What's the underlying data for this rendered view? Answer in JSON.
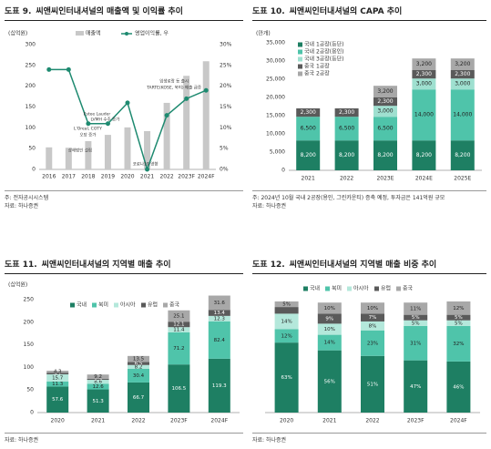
{
  "charts": {
    "f9": {
      "fig_label": "도표 9.",
      "title": "씨앤씨인터내셔널의 매출액 및 이익률 추이",
      "unit_left": "(십억원)",
      "notes": [
        "주: 전자공시시스템",
        "자료: 하나증권"
      ]
    },
    "f10": {
      "fig_label": "도표 10.",
      "title": "씨앤씨인터내셔널의 CAPA 추이",
      "unit_left": "(만개)",
      "notes": [
        "주: 2024년 10월 국내 2공장(용인, 그린카운티) 증축 예정, 투자금은 141억원 규모",
        "자료: 하나증권"
      ]
    },
    "f11": {
      "fig_label": "도표 11.",
      "title": "씨앤씨인터내셔널의 지역별 매출 추이",
      "unit_left": "(십억원)",
      "notes": [
        "자료: 하나증권"
      ]
    },
    "f12": {
      "fig_label": "도표 12.",
      "title": "씨앤씨인터내셔널의 지역별 매출 비중 추이",
      "notes": [
        "자료: 하나증권"
      ]
    }
  },
  "chart_data": [
    {
      "id": "f9",
      "type": "bar",
      "title": "씨앤씨인터내셔널의 매출액 및 이익률 추이",
      "categories": [
        "2016",
        "2017",
        "2018",
        "2019",
        "2020",
        "2021",
        "2022",
        "2023F",
        "2024F"
      ],
      "series": [
        {
          "name": "매출액",
          "type": "bar",
          "axis": "left",
          "color": "#c8c8c8",
          "values": [
            53,
            52,
            68,
            83,
            101,
            92,
            160,
            225,
            260
          ]
        },
        {
          "name": "영업이익률, 우",
          "type": "line",
          "axis": "right",
          "color": "#1e8a70",
          "values": [
            24,
            24,
            11,
            11,
            16,
            0,
            13,
            17,
            19
          ]
        }
      ],
      "ylim": [
        0,
        300
      ],
      "y_ticks": [
        0,
        50,
        100,
        150,
        200,
        250,
        300
      ],
      "y2lim": [
        0,
        30
      ],
      "y2_ticks": [
        "0%",
        "5%",
        "10%",
        "15%",
        "20%",
        "25%",
        "30%"
      ],
      "legend": "top-right",
      "annotations": [
        {
          "text": "상해법인 설립",
          "x": "2018"
        },
        {
          "text": "Estee Lauder",
          "x": "2019"
        },
        {
          "text": "LVMH 수주 증가",
          "x": "2019"
        },
        {
          "text": "L'Oreal, COTY",
          "x": "2019"
        },
        {
          "text": "오당 증가",
          "x": "2019"
        },
        {
          "text": "코로나19 영향",
          "x": "2021"
        },
        {
          "text": "입생로랑 등 출시",
          "x": "2022"
        },
        {
          "text": "TARTE(KOSE, 북미) 매출 급증",
          "x": "2022"
        }
      ]
    },
    {
      "id": "f10",
      "type": "bar",
      "stacked": true,
      "title": "씨앤씨인터내셔널의 CAPA 추이",
      "categories": [
        "2021",
        "2022",
        "2023E",
        "2024E",
        "2025E"
      ],
      "series": [
        {
          "name": "국내 1공장(등단)",
          "color": "#1e7f63",
          "values": [
            8200,
            8200,
            8200,
            8200,
            8200
          ]
        },
        {
          "name": "국내 2공장(용인)",
          "color": "#4fc4aa",
          "values": [
            6500,
            6500,
            6500,
            14000,
            14000
          ]
        },
        {
          "name": "국내 3공장(등단)",
          "color": "#9fe0d0",
          "values": [
            0,
            0,
            3000,
            3000,
            3000
          ]
        },
        {
          "name": "중국 1공장",
          "color": "#5a5a5a",
          "values": [
            2300,
            2300,
            2300,
            2300,
            2300
          ]
        },
        {
          "name": "중국 2공장",
          "color": "#a8a8a8",
          "values": [
            0,
            0,
            3200,
            3200,
            3200
          ]
        }
      ],
      "labels_shown": [
        [
          "8,200",
          "6,500",
          "",
          "2,300",
          ""
        ],
        [
          "8,200",
          "6,500",
          "",
          "2,300",
          ""
        ],
        [
          "8,200",
          "6,500",
          "3,000",
          "2,300",
          "3,200"
        ],
        [
          "8,200",
          "14,000",
          "3,000",
          "2,300",
          "3,200"
        ],
        [
          "8,200",
          "14,000",
          "3,000",
          "2,300",
          "3,200"
        ]
      ],
      "ylim": [
        0,
        35000
      ],
      "y_ticks": [
        "0",
        "5,000",
        "10,000",
        "15,000",
        "20,000",
        "25,000",
        "30,000",
        "35,000"
      ],
      "legend": "top-left"
    },
    {
      "id": "f11",
      "type": "bar",
      "stacked": true,
      "title": "씨앤씨인터내셔널의 지역별 매출 추이",
      "categories": [
        "2020",
        "2021",
        "2022",
        "2023F",
        "2024F"
      ],
      "series": [
        {
          "name": "국내",
          "color": "#1e7f63",
          "values": [
            57.6,
            51.3,
            66.7,
            106.5,
            119.3
          ]
        },
        {
          "name": "북미",
          "color": "#4fc4aa",
          "values": [
            11.3,
            12.6,
            30.4,
            71.2,
            82.4
          ]
        },
        {
          "name": "아시아",
          "color": "#b4e8db",
          "values": [
            15.7,
            8.6,
            8.2,
            11.4,
            12.3
          ]
        },
        {
          "name": "유럽",
          "color": "#5a5a5a",
          "values": [
            3.7,
            2.5,
            6.5,
            12.1,
            13.4
          ]
        },
        {
          "name": "중국",
          "color": "#a8a8a8",
          "values": [
            4.3,
            9.2,
            13.5,
            25.1,
            31.6
          ]
        }
      ],
      "ylim": [
        0,
        250
      ],
      "y_ticks": [
        0,
        50,
        100,
        150,
        200,
        250
      ],
      "legend": "top-left"
    },
    {
      "id": "f12",
      "type": "bar",
      "stacked": true,
      "title": "씨앤씨인터내셔널의 지역별 매출 비중 추이",
      "categories": [
        "2020",
        "2021",
        "2022",
        "2023F",
        "2024F"
      ],
      "series": [
        {
          "name": "국내",
          "color": "#1e7f63",
          "values": [
            63,
            56,
            51,
            47,
            46
          ],
          "labels": [
            "63%",
            "56%",
            "51%",
            "47%",
            "46%"
          ]
        },
        {
          "name": "북미",
          "color": "#4fc4aa",
          "values": [
            12,
            14,
            23,
            31,
            32
          ],
          "labels": [
            "12%",
            "14%",
            "23%",
            "31%",
            "32%"
          ]
        },
        {
          "name": "아시아",
          "color": "#b4e8db",
          "values": [
            14,
            10,
            8,
            5,
            5
          ],
          "labels": [
            "14%",
            "10%",
            "8%",
            "5%",
            "5%"
          ]
        },
        {
          "name": "유럽",
          "color": "#5a5a5a",
          "values": [
            6,
            9,
            7,
            5,
            5
          ],
          "labels": [
            "",
            "9%",
            "7%",
            "5%",
            "5%"
          ]
        },
        {
          "name": "중국",
          "color": "#a8a8a8",
          "values": [
            5,
            10,
            10,
            11,
            12
          ],
          "labels": [
            "5%",
            "10%",
            "10%",
            "11%",
            "12%"
          ]
        }
      ],
      "ylim": [
        0,
        100
      ],
      "legend": "top-left"
    }
  ]
}
